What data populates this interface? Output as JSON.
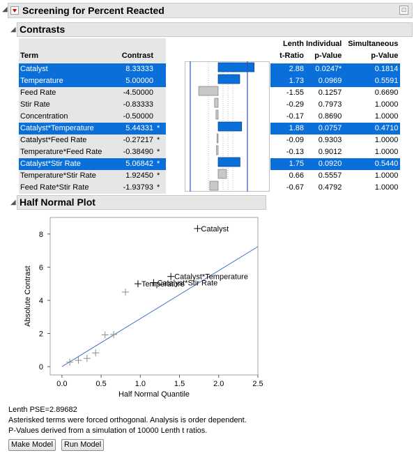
{
  "report": {
    "title": "Screening for Percent Reacted"
  },
  "contrasts": {
    "title": "Contrasts",
    "headers": {
      "term": "Term",
      "contrast": "Contrast",
      "lenth_top": "Lenth",
      "lenth_bottom": "t-Ratio",
      "indiv_top": "Individual",
      "indiv_bottom": "p-Value",
      "simul_top": "Simultaneous",
      "simul_bottom": "p-Value"
    },
    "rows": [
      {
        "term": "Catalyst",
        "contrast": "8.33333",
        "star": "",
        "t": "2.88",
        "p": "0.0247*",
        "sp": "0.1814",
        "selected": true,
        "pink": true
      },
      {
        "term": "Temperature",
        "contrast": "5.00000",
        "star": "",
        "t": "1.73",
        "p": "0.0969",
        "sp": "0.5591",
        "selected": true,
        "pink": false
      },
      {
        "term": "Feed Rate",
        "contrast": "-4.50000",
        "star": "",
        "t": "-1.55",
        "p": "0.1257",
        "sp": "0.6690",
        "selected": false,
        "pink": false
      },
      {
        "term": "Stir Rate",
        "contrast": "-0.83333",
        "star": "",
        "t": "-0.29",
        "p": "0.7973",
        "sp": "1.0000",
        "selected": false,
        "pink": false
      },
      {
        "term": "Concentration",
        "contrast": "-0.50000",
        "star": "",
        "t": "-0.17",
        "p": "0.8690",
        "sp": "1.0000",
        "selected": false,
        "pink": false
      },
      {
        "term": "Catalyst*Temperature",
        "contrast": "5.44331",
        "star": "*",
        "t": "1.88",
        "p": "0.0757",
        "sp": "0.4710",
        "selected": true,
        "pink": false
      },
      {
        "term": "Catalyst*Feed Rate",
        "contrast": "-0.27217",
        "star": "*",
        "t": "-0.09",
        "p": "0.9303",
        "sp": "1.0000",
        "selected": false,
        "pink": false
      },
      {
        "term": "Temperature*Feed Rate",
        "contrast": "-0.38490",
        "star": "*",
        "t": "-0.13",
        "p": "0.9012",
        "sp": "1.0000",
        "selected": false,
        "pink": false
      },
      {
        "term": "Catalyst*Stir Rate",
        "contrast": "5.06842",
        "star": "*",
        "t": "1.75",
        "p": "0.0920",
        "sp": "0.5440",
        "selected": true,
        "pink": false
      },
      {
        "term": "Temperature*Stir Rate",
        "contrast": "1.92450",
        "star": "*",
        "t": "0.66",
        "p": "0.5557",
        "sp": "1.0000",
        "selected": false,
        "pink": false
      },
      {
        "term": "Feed Rate*Stir Rate",
        "contrast": "-1.93793",
        "star": "*",
        "t": "-0.67",
        "p": "0.4792",
        "sp": "1.0000",
        "selected": false,
        "pink": false
      }
    ]
  },
  "half_normal": {
    "title": "Half Normal Plot"
  },
  "chart_data": {
    "type": "scatter",
    "xlabel": "Half Normal Quantile",
    "ylabel": "Absolute Contrast",
    "xlim": [
      -0.15,
      2.5
    ],
    "ylim": [
      -0.5,
      9.0
    ],
    "xticks": [
      "0.0",
      "0.5",
      "1.0",
      "1.5",
      "2.0",
      "2.5"
    ],
    "xtick_values": [
      0.0,
      0.5,
      1.0,
      1.5,
      2.0,
      2.5
    ],
    "yticks": [
      "0",
      "2",
      "4",
      "6",
      "8"
    ],
    "ytick_values": [
      0,
      2,
      4,
      6,
      8
    ],
    "line": {
      "x": [
        0,
        2.5
      ],
      "y": [
        0,
        7.24
      ],
      "color": "#4472c4"
    },
    "points": [
      {
        "x": 0.1,
        "y": 0.27,
        "label": "",
        "labeled": false
      },
      {
        "x": 0.21,
        "y": 0.38,
        "label": "",
        "labeled": false
      },
      {
        "x": 0.32,
        "y": 0.5,
        "label": "",
        "labeled": false
      },
      {
        "x": 0.43,
        "y": 0.83,
        "label": "",
        "labeled": false
      },
      {
        "x": 0.55,
        "y": 1.92,
        "label": "",
        "labeled": false
      },
      {
        "x": 0.66,
        "y": 1.94,
        "label": "",
        "labeled": false
      },
      {
        "x": 0.81,
        "y": 4.5,
        "label": "",
        "labeled": false
      },
      {
        "x": 0.97,
        "y": 5.0,
        "label": "Temperature",
        "labeled": true
      },
      {
        "x": 1.17,
        "y": 5.07,
        "label": "Catalyst*Stir Rate",
        "labeled": true
      },
      {
        "x": 1.39,
        "y": 5.44,
        "label": "Catalyst*Temperature",
        "labeled": true
      },
      {
        "x": 1.73,
        "y": 8.33,
        "label": "Catalyst",
        "labeled": true
      }
    ]
  },
  "notes": {
    "pse": "Lenth PSE=2.89682",
    "asterisk": "Asterisked terms were forced orthogonal. Analysis is order dependent.",
    "pvalues": "P-Values derived from a simulation of 10000 Lenth t ratios."
  },
  "buttons": {
    "make_model": "Make Model",
    "run_model": "Run Model"
  }
}
